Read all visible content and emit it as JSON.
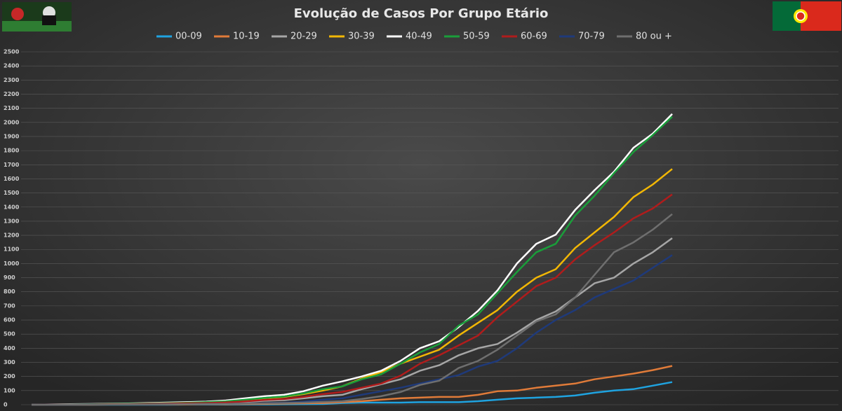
{
  "chart_data": {
    "type": "line",
    "title": "Evolução de Casos Por Grupo Etário",
    "categories": [
      null,
      null,
      null,
      null,
      null,
      null,
      null,
      null,
      null,
      null,
      null,
      null,
      null,
      null,
      null,
      null,
      null,
      null,
      null,
      null,
      null,
      null,
      null,
      null,
      null,
      null,
      null,
      null,
      null,
      null,
      null,
      null,
      null,
      null
    ],
    "series": [
      {
        "name": "00-09",
        "color": "#1fa3e0",
        "values": [
          0,
          0,
          0,
          0,
          0,
          0,
          0,
          0,
          1,
          1,
          1,
          2,
          2,
          3,
          4,
          5,
          12,
          15,
          15,
          15,
          18,
          18,
          18,
          25,
          35,
          45,
          50,
          55,
          65,
          85,
          100,
          110,
          135,
          160
        ]
      },
      {
        "name": "10-19",
        "color": "#e07b39",
        "values": [
          0,
          0,
          0,
          0,
          1,
          1,
          1,
          2,
          2,
          3,
          4,
          5,
          6,
          8,
          10,
          12,
          18,
          25,
          35,
          45,
          50,
          55,
          55,
          70,
          95,
          100,
          120,
          135,
          150,
          180,
          200,
          220,
          245,
          275
        ]
      },
      {
        "name": "20-29",
        "color": "#a6a6a6",
        "values": [
          0,
          1,
          1,
          2,
          3,
          4,
          5,
          7,
          9,
          11,
          14,
          20,
          28,
          32,
          45,
          60,
          70,
          110,
          145,
          180,
          240,
          280,
          350,
          400,
          430,
          510,
          600,
          660,
          760,
          860,
          900,
          1000,
          1080,
          1180
        ]
      },
      {
        "name": "30-39",
        "color": "#f2b705",
        "values": [
          0,
          1,
          2,
          3,
          4,
          6,
          8,
          10,
          13,
          16,
          22,
          32,
          45,
          55,
          75,
          100,
          130,
          185,
          230,
          290,
          340,
          390,
          490,
          580,
          670,
          800,
          900,
          960,
          1110,
          1220,
          1330,
          1470,
          1560,
          1670
        ]
      },
      {
        "name": "40-49",
        "color": "#ffffff",
        "values": [
          0,
          2,
          4,
          5,
          7,
          9,
          12,
          15,
          18,
          22,
          30,
          45,
          60,
          70,
          95,
          135,
          165,
          200,
          240,
          310,
          400,
          450,
          550,
          665,
          810,
          1000,
          1140,
          1205,
          1380,
          1520,
          1650,
          1820,
          1920,
          2060
        ]
      },
      {
        "name": "50-59",
        "color": "#1a9e3a",
        "values": [
          0,
          1,
          2,
          3,
          5,
          7,
          9,
          11,
          14,
          18,
          24,
          35,
          48,
          58,
          80,
          110,
          130,
          180,
          215,
          290,
          370,
          430,
          560,
          640,
          790,
          940,
          1080,
          1140,
          1340,
          1480,
          1640,
          1790,
          1910,
          2040
        ]
      },
      {
        "name": "60-69",
        "color": "#b01c1c",
        "values": [
          0,
          1,
          1,
          2,
          3,
          4,
          6,
          8,
          10,
          12,
          16,
          24,
          34,
          40,
          55,
          75,
          90,
          120,
          150,
          205,
          290,
          350,
          420,
          490,
          620,
          730,
          840,
          900,
          1030,
          1130,
          1220,
          1320,
          1390,
          1490
        ]
      },
      {
        "name": "70-79",
        "color": "#1f3a7a",
        "values": [
          0,
          0,
          0,
          1,
          1,
          2,
          2,
          3,
          4,
          5,
          6,
          9,
          12,
          15,
          22,
          35,
          45,
          70,
          95,
          120,
          150,
          180,
          210,
          270,
          310,
          400,
          510,
          600,
          670,
          760,
          820,
          880,
          970,
          1060
        ]
      },
      {
        "name": "80 ou +",
        "color": "#6f6f6f",
        "values": [
          0,
          0,
          0,
          0,
          1,
          1,
          2,
          3,
          4,
          5,
          6,
          8,
          10,
          12,
          15,
          20,
          25,
          40,
          60,
          90,
          140,
          170,
          260,
          310,
          390,
          490,
          590,
          640,
          760,
          920,
          1080,
          1150,
          1240,
          1350
        ]
      }
    ],
    "ylim": [
      0,
      2500
    ],
    "yticks": [
      0,
      100,
      200,
      300,
      400,
      500,
      600,
      700,
      800,
      900,
      1000,
      1100,
      1200,
      1300,
      1400,
      1500,
      1600,
      1700,
      1800,
      1900,
      2000,
      2100,
      2200,
      2300,
      2400,
      2500
    ],
    "grid": true
  }
}
